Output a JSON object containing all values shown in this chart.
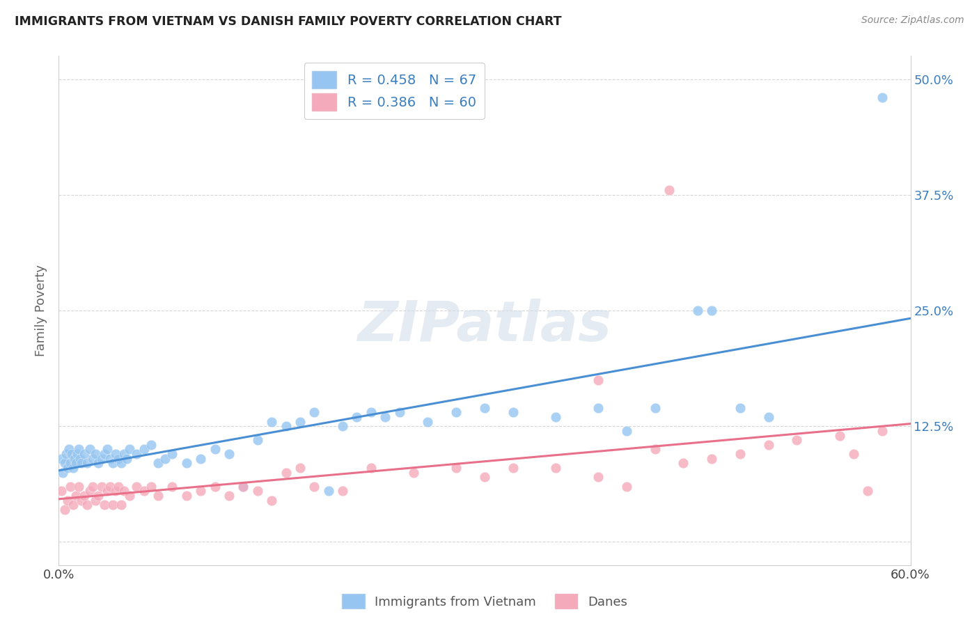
{
  "title": "IMMIGRANTS FROM VIETNAM VS DANISH FAMILY POVERTY CORRELATION CHART",
  "source": "Source: ZipAtlas.com",
  "ylabel": "Family Poverty",
  "legend_labels": [
    "Immigrants from Vietnam",
    "Danes"
  ],
  "legend_R": [
    0.458,
    0.386
  ],
  "legend_N": [
    67,
    60
  ],
  "blue_color": "#95C5F0",
  "pink_color": "#F5AABB",
  "line_blue": "#4A8FD4",
  "line_pink": "#E8708A",
  "text_blue": "#3B7EC0",
  "xlim": [
    0.0,
    0.6
  ],
  "ylim": [
    -0.025,
    0.525
  ],
  "yticks": [
    0.0,
    0.125,
    0.25,
    0.375,
    0.5
  ],
  "ytick_labels_right": [
    "",
    "12.5%",
    "25.0%",
    "37.5%",
    "50.0%"
  ],
  "blue_x": [
    0.002,
    0.003,
    0.004,
    0.005,
    0.006,
    0.007,
    0.008,
    0.009,
    0.01,
    0.011,
    0.012,
    0.013,
    0.014,
    0.015,
    0.016,
    0.018,
    0.02,
    0.022,
    0.024,
    0.026,
    0.028,
    0.03,
    0.032,
    0.034,
    0.036,
    0.038,
    0.04,
    0.042,
    0.044,
    0.046,
    0.048,
    0.05,
    0.055,
    0.06,
    0.065,
    0.07,
    0.075,
    0.08,
    0.09,
    0.1,
    0.11,
    0.12,
    0.13,
    0.14,
    0.15,
    0.16,
    0.17,
    0.18,
    0.19,
    0.2,
    0.21,
    0.22,
    0.23,
    0.24,
    0.26,
    0.28,
    0.3,
    0.32,
    0.35,
    0.38,
    0.4,
    0.42,
    0.45,
    0.48,
    0.5,
    0.46,
    0.58
  ],
  "blue_y": [
    0.09,
    0.075,
    0.085,
    0.095,
    0.08,
    0.1,
    0.085,
    0.095,
    0.08,
    0.09,
    0.085,
    0.095,
    0.1,
    0.09,
    0.085,
    0.095,
    0.085,
    0.1,
    0.09,
    0.095,
    0.085,
    0.09,
    0.095,
    0.1,
    0.09,
    0.085,
    0.095,
    0.09,
    0.085,
    0.095,
    0.09,
    0.1,
    0.095,
    0.1,
    0.105,
    0.085,
    0.09,
    0.095,
    0.085,
    0.09,
    0.1,
    0.095,
    0.06,
    0.11,
    0.13,
    0.125,
    0.13,
    0.14,
    0.055,
    0.125,
    0.135,
    0.14,
    0.135,
    0.14,
    0.13,
    0.14,
    0.145,
    0.14,
    0.135,
    0.145,
    0.12,
    0.145,
    0.25,
    0.145,
    0.135,
    0.25,
    0.48
  ],
  "pink_x": [
    0.002,
    0.004,
    0.006,
    0.008,
    0.01,
    0.012,
    0.014,
    0.016,
    0.018,
    0.02,
    0.022,
    0.024,
    0.026,
    0.028,
    0.03,
    0.032,
    0.034,
    0.036,
    0.038,
    0.04,
    0.042,
    0.044,
    0.046,
    0.05,
    0.055,
    0.06,
    0.065,
    0.07,
    0.08,
    0.09,
    0.1,
    0.11,
    0.12,
    0.13,
    0.14,
    0.15,
    0.16,
    0.17,
    0.18,
    0.2,
    0.22,
    0.25,
    0.28,
    0.3,
    0.32,
    0.35,
    0.38,
    0.4,
    0.42,
    0.44,
    0.46,
    0.48,
    0.5,
    0.52,
    0.55,
    0.56,
    0.57,
    0.58,
    0.43,
    0.38
  ],
  "pink_y": [
    0.055,
    0.035,
    0.045,
    0.06,
    0.04,
    0.05,
    0.06,
    0.045,
    0.05,
    0.04,
    0.055,
    0.06,
    0.045,
    0.05,
    0.06,
    0.04,
    0.055,
    0.06,
    0.04,
    0.055,
    0.06,
    0.04,
    0.055,
    0.05,
    0.06,
    0.055,
    0.06,
    0.05,
    0.06,
    0.05,
    0.055,
    0.06,
    0.05,
    0.06,
    0.055,
    0.045,
    0.075,
    0.08,
    0.06,
    0.055,
    0.08,
    0.075,
    0.08,
    0.07,
    0.08,
    0.08,
    0.07,
    0.06,
    0.1,
    0.085,
    0.09,
    0.095,
    0.105,
    0.11,
    0.115,
    0.095,
    0.055,
    0.12,
    0.38,
    0.175
  ]
}
